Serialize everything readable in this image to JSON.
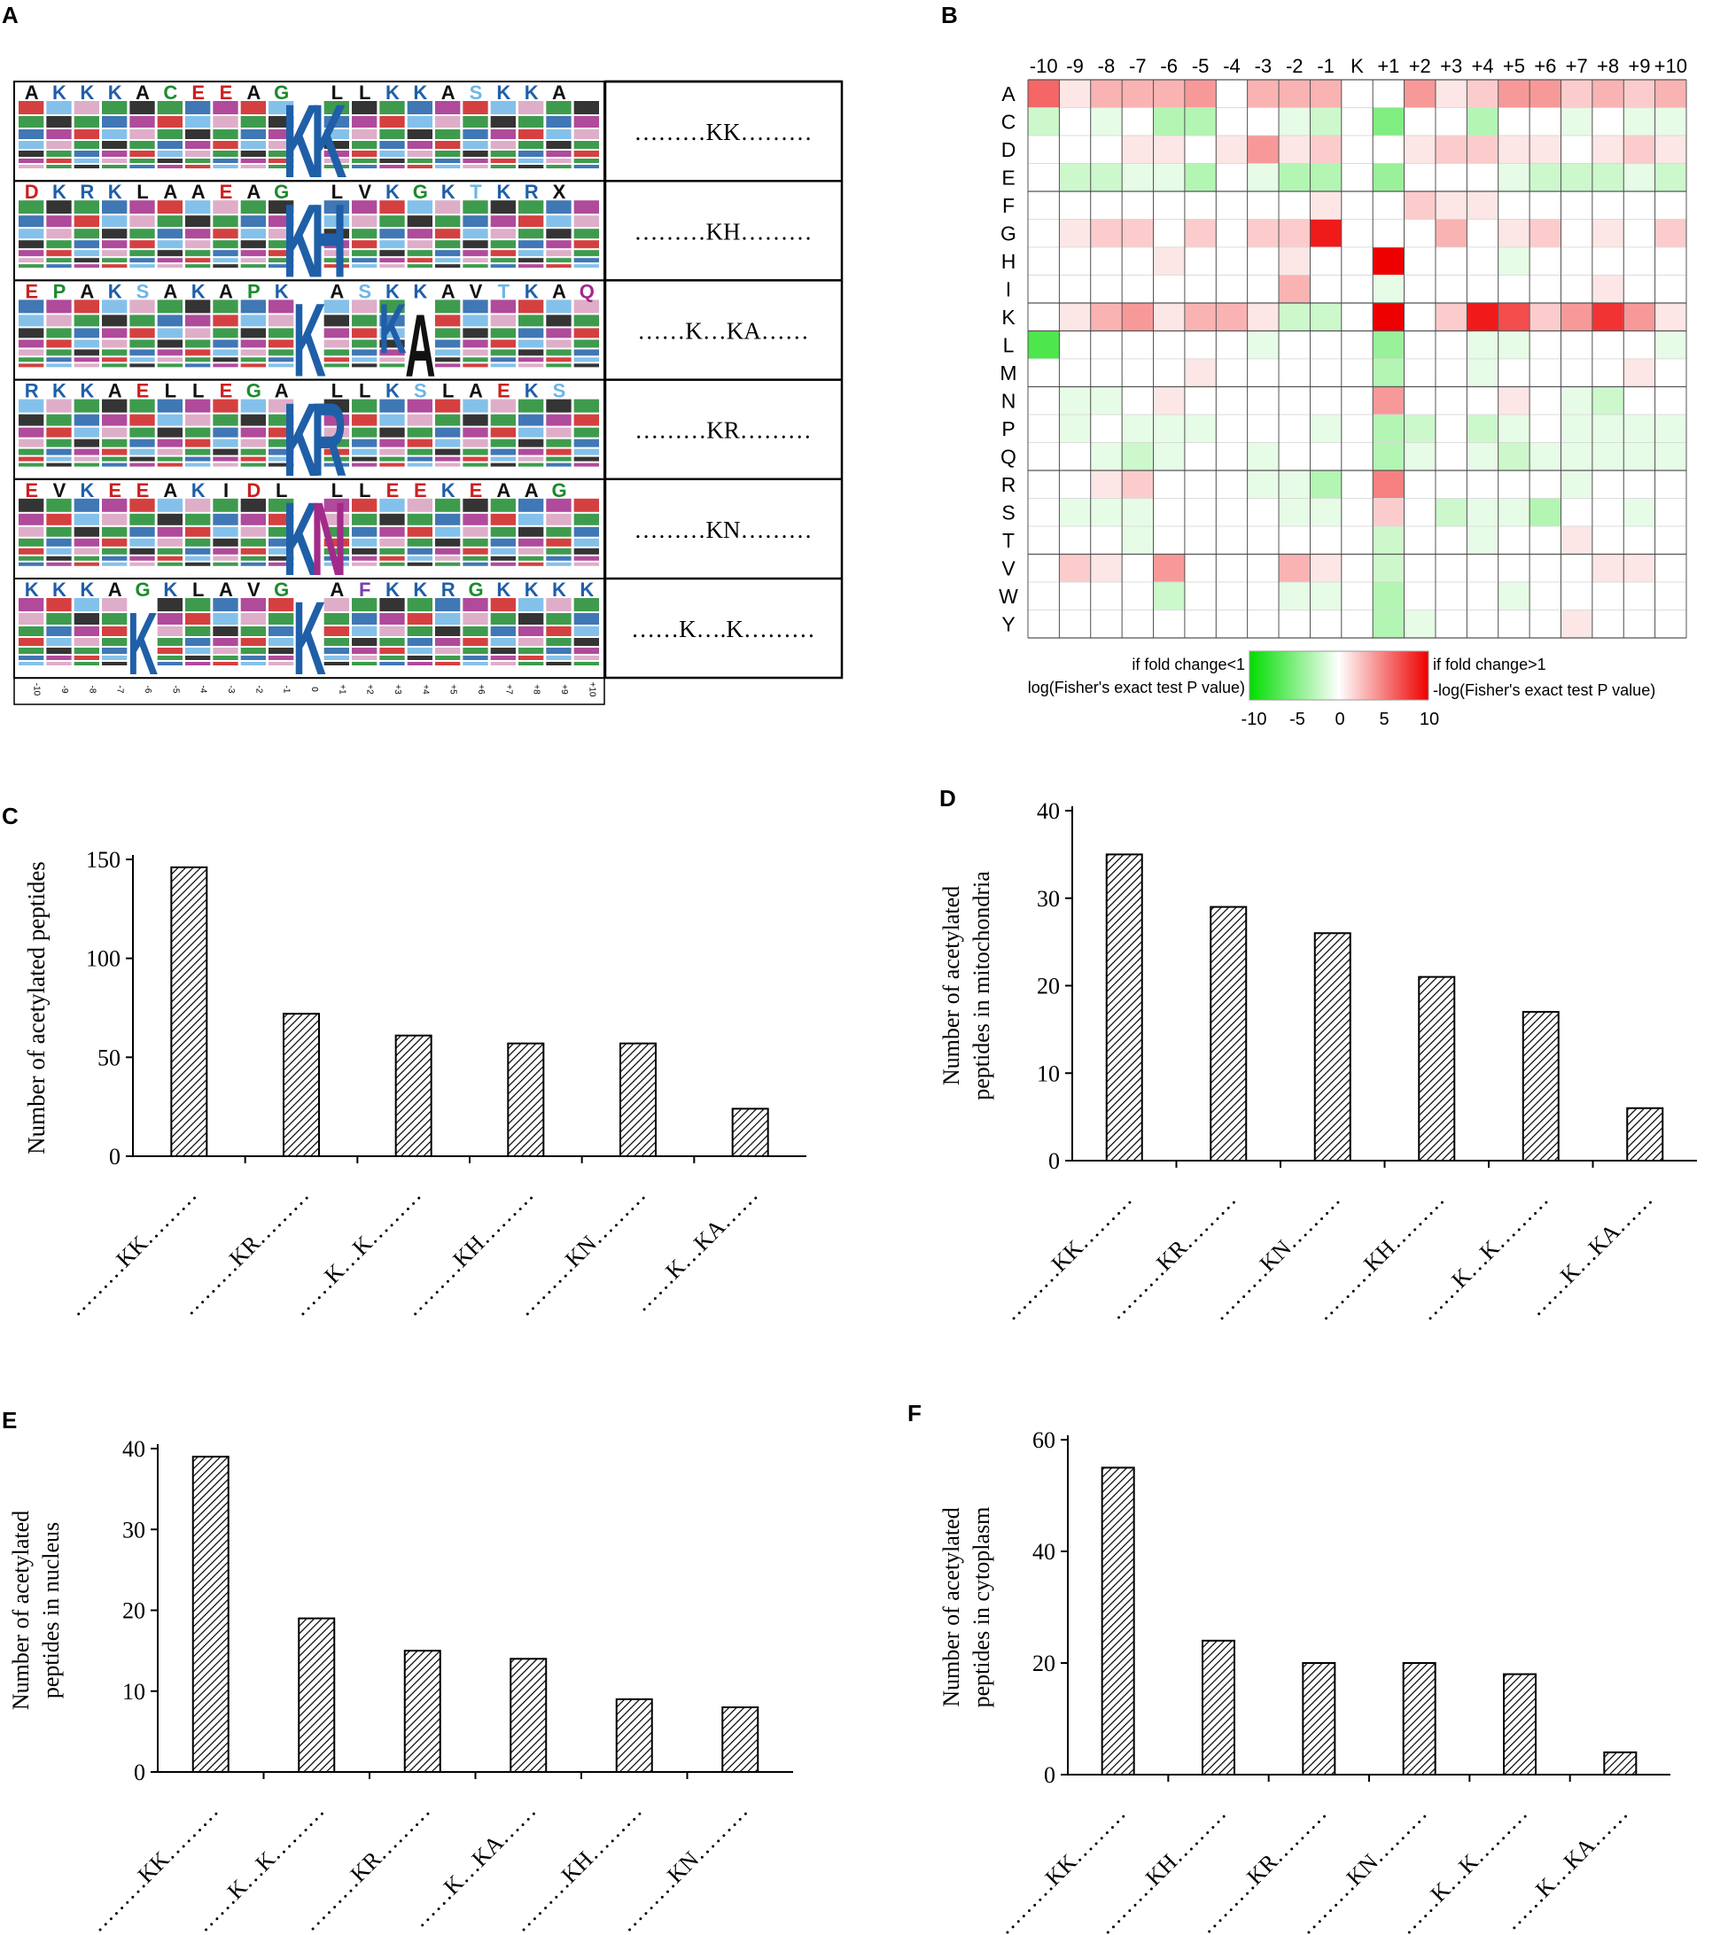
{
  "panel_labels": [
    "A",
    "B",
    "C",
    "D",
    "E",
    "F"
  ],
  "motif_panel": {
    "motifs": [
      {
        "label": "………KK………",
        "center": "KK",
        "top_row": "AKKKACEEAG",
        "right_row": "LLKKASKKA"
      },
      {
        "label": "………KH………",
        "center": "KH",
        "top_row": "DKRKLAAEAG",
        "right_row": "LVKGKTKRX"
      },
      {
        "label": "……K…KA……",
        "center": "KA",
        "top_row": "EPAKSAKAPK",
        "right_row": "ASKKAVTKAQ"
      },
      {
        "label": "………KR………",
        "center": "KR",
        "top_row": "RKKAELLEGA",
        "right_row": "LLKSLAEKS"
      },
      {
        "label": "………KN………",
        "center": "KN",
        "top_row": "EVKEEAKIDL",
        "right_row": "LLEEKEAAG"
      },
      {
        "label": "……K….K………",
        "center": "KK",
        "top_row": "KKKAGKLAVG",
        "right_row": "AFKKRGKKKK"
      }
    ],
    "x_ticks": [
      "-10",
      "-9",
      "-8",
      "-7",
      "-6",
      "-5",
      "-4",
      "-3",
      "-2",
      "-1",
      "0",
      "+1",
      "+2",
      "+3",
      "+4",
      "+5",
      "+6",
      "+7",
      "+8",
      "+9",
      "+10"
    ]
  },
  "heatmap": {
    "columns": [
      "-10",
      "-9",
      "-8",
      "-7",
      "-6",
      "-5",
      "-4",
      "-3",
      "-2",
      "-1",
      "K",
      "+1",
      "+2",
      "+3",
      "+4",
      "+5",
      "+6",
      "+7",
      "+8",
      "+9",
      "+10"
    ],
    "rows": [
      "A",
      "C",
      "D",
      "E",
      "F",
      "G",
      "H",
      "I",
      "K",
      "L",
      "M",
      "N",
      "P",
      "Q",
      "R",
      "S",
      "T",
      "V",
      "W",
      "Y"
    ],
    "legend_left": [
      "if fold change<1",
      "log(Fisher's exact test P value)"
    ],
    "legend_right": [
      "if fold change>1",
      "-log(Fisher's exact test P value)"
    ],
    "legend_ticks": [
      "-10",
      "-5",
      "0",
      "5",
      "10"
    ],
    "low_color": "#00dd00",
    "mid_color": "#ffffff",
    "high_color": "#ee0000"
  },
  "chart_data": [
    {
      "type": "bar",
      "panel": "C",
      "title": "",
      "xlabel": "",
      "ylabel": "Number of acetylated peptides",
      "categories": [
        "………KK………",
        "………KR………",
        "……K…K………",
        "………KH………",
        "………KN………",
        "……K…KA……"
      ],
      "values": [
        146,
        72,
        61,
        57,
        57,
        24
      ],
      "ylim": [
        0,
        150
      ],
      "yticks": [
        0,
        50,
        100,
        150
      ]
    },
    {
      "type": "bar",
      "panel": "D",
      "title": "",
      "xlabel": "",
      "ylabel": [
        "Number of acetylated",
        "peptides in mitochondria"
      ],
      "categories": [
        "………KK………",
        "………KR………",
        "………KN………",
        "………KH………",
        "……K…K………",
        "……K…KA……"
      ],
      "values": [
        35,
        29,
        26,
        21,
        17,
        6
      ],
      "ylim": [
        0,
        40
      ],
      "yticks": [
        0,
        10,
        20,
        30,
        40
      ]
    },
    {
      "type": "bar",
      "panel": "E",
      "title": "",
      "xlabel": "",
      "ylabel": [
        "Number of acetylated",
        "peptides in nucleus"
      ],
      "categories": [
        "………KK………",
        "……K…K………",
        "………KR………",
        "……K…KA……",
        "………KH………",
        "………KN………"
      ],
      "values": [
        39,
        19,
        15,
        14,
        9,
        8
      ],
      "ylim": [
        0,
        40
      ],
      "yticks": [
        0,
        10,
        20,
        30,
        40
      ]
    },
    {
      "type": "bar",
      "panel": "F",
      "title": "",
      "xlabel": "",
      "ylabel": [
        "Number of acetylated",
        "peptides in cytoplasm"
      ],
      "categories": [
        "………KK………",
        "………KH………",
        "………KR………",
        "………KN………",
        "……K…K………",
        "……K…KA……"
      ],
      "values": [
        55,
        24,
        20,
        20,
        18,
        4
      ],
      "ylim": [
        0,
        60
      ],
      "yticks": [
        0,
        20,
        40,
        60
      ]
    }
  ],
  "heatmap_values": [
    [
      6,
      1,
      3,
      3,
      3,
      4,
      0,
      3,
      3,
      3,
      0,
      0,
      4,
      1,
      2,
      4,
      4,
      2,
      3,
      2,
      3
    ],
    [
      -2,
      0,
      -1,
      0,
      -3,
      -3,
      0,
      0,
      -1,
      -2,
      0,
      -5,
      0,
      0,
      -3,
      0,
      0,
      -1,
      0,
      -1,
      -1
    ],
    [
      0,
      0,
      0,
      1,
      1,
      0,
      1,
      4,
      1,
      2,
      0,
      0,
      1,
      2,
      2,
      1,
      1,
      0,
      1,
      2,
      1
    ],
    [
      0,
      -2,
      -2,
      -1,
      -1,
      -3,
      0,
      -1,
      -3,
      -3,
      0,
      -4,
      0,
      0,
      0,
      -1,
      -2,
      -2,
      -2,
      -1,
      -2
    ],
    [
      0,
      0,
      0,
      0,
      0,
      0,
      0,
      0,
      0,
      1,
      0,
      0,
      2,
      1,
      1,
      0,
      0,
      0,
      0,
      0,
      0
    ],
    [
      0,
      1,
      2,
      2,
      0,
      2,
      0,
      2,
      2,
      9,
      0,
      0,
      0,
      3,
      0,
      1,
      2,
      0,
      1,
      0,
      2
    ],
    [
      0,
      0,
      0,
      0,
      1,
      0,
      0,
      0,
      1,
      0,
      0,
      10,
      0,
      0,
      0,
      -1,
      0,
      0,
      0,
      0,
      0
    ],
    [
      0,
      0,
      0,
      0,
      0,
      0,
      0,
      0,
      3,
      0,
      0,
      -1,
      0,
      0,
      0,
      0,
      0,
      0,
      1,
      0,
      0
    ],
    [
      0,
      1,
      3,
      4,
      1,
      3,
      3,
      1,
      -2,
      -2,
      0,
      10,
      0,
      2,
      9,
      7,
      2,
      4,
      8,
      4,
      1
    ],
    [
      -7,
      0,
      0,
      0,
      0,
      0,
      0,
      -1,
      0,
      0,
      0,
      -4,
      0,
      0,
      -1,
      -1,
      0,
      0,
      0,
      0,
      -1
    ],
    [
      0,
      0,
      0,
      0,
      0,
      1,
      0,
      0,
      0,
      0,
      0,
      -3,
      0,
      0,
      -1,
      0,
      0,
      0,
      0,
      1,
      0
    ],
    [
      0,
      -1,
      -1,
      0,
      1,
      0,
      0,
      0,
      0,
      0,
      0,
      4,
      0,
      0,
      0,
      1,
      0,
      -1,
      -2,
      0,
      0
    ],
    [
      0,
      -1,
      0,
      -1,
      -1,
      -1,
      0,
      0,
      0,
      -1,
      0,
      -3,
      -2,
      0,
      -2,
      -1,
      0,
      -1,
      -1,
      -1,
      -1
    ],
    [
      0,
      0,
      -1,
      -2,
      -1,
      0,
      0,
      -1,
      0,
      0,
      0,
      -3,
      -1,
      0,
      -1,
      -2,
      -1,
      -1,
      -1,
      -1,
      -1
    ],
    [
      0,
      0,
      1,
      2,
      0,
      0,
      0,
      -1,
      -1,
      -3,
      0,
      5,
      0,
      0,
      0,
      0,
      0,
      -1,
      0,
      0,
      0
    ],
    [
      0,
      -1,
      -1,
      -1,
      0,
      0,
      0,
      0,
      -1,
      -1,
      0,
      2,
      0,
      -2,
      -1,
      -1,
      -3,
      0,
      0,
      -1,
      0
    ],
    [
      0,
      0,
      0,
      -1,
      0,
      0,
      0,
      0,
      0,
      0,
      0,
      -2,
      0,
      0,
      -1,
      0,
      0,
      1,
      0,
      0,
      0
    ],
    [
      0,
      2,
      1,
      0,
      4,
      0,
      0,
      0,
      3,
      1,
      0,
      -2,
      0,
      0,
      0,
      0,
      0,
      0,
      1,
      1,
      0
    ],
    [
      0,
      0,
      0,
      0,
      -2,
      0,
      0,
      0,
      -1,
      -1,
      0,
      -3,
      0,
      0,
      0,
      -1,
      0,
      0,
      0,
      0,
      0
    ],
    [
      0,
      0,
      0,
      0,
      0,
      0,
      0,
      0,
      0,
      0,
      0,
      -3,
      -1,
      0,
      0,
      0,
      0,
      1,
      0,
      0,
      0
    ]
  ]
}
